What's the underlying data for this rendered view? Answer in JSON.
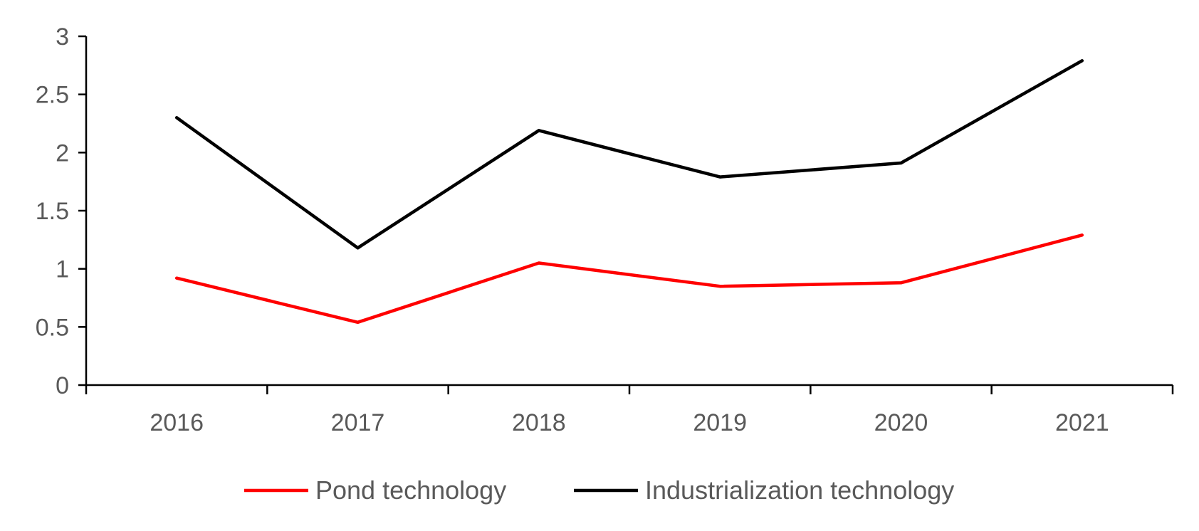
{
  "chart_data": {
    "type": "line",
    "title": "",
    "xlabel": "",
    "ylabel": "",
    "categories": [
      "2016",
      "2017",
      "2018",
      "2019",
      "2020",
      "2021"
    ],
    "ylim": [
      0,
      3
    ],
    "yticks": [
      "0",
      "0.5",
      "1",
      "1.5",
      "2",
      "2.5",
      "3"
    ],
    "grid": false,
    "legend_position": "bottom",
    "series": [
      {
        "name": "Pond technology",
        "color": "#ff0000",
        "values": [
          0.92,
          0.54,
          1.05,
          0.85,
          0.88,
          1.29
        ]
      },
      {
        "name": "Industrialization technology",
        "color": "#000000",
        "values": [
          2.3,
          1.18,
          2.19,
          1.79,
          1.91,
          2.79
        ]
      }
    ]
  }
}
